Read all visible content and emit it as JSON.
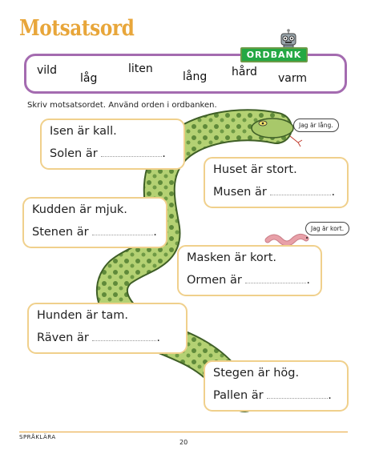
{
  "title": "Motsatsord",
  "wordbank": {
    "label": "ORDBANK",
    "words": [
      "vild",
      "låg",
      "liten",
      "lång",
      "hård",
      "varm"
    ]
  },
  "instruction": "Skriv motsatsordet. Använd orden i ordbanken.",
  "exercises": [
    {
      "statement": "Isen är kall.",
      "prompt": "Solen är",
      "end": "."
    },
    {
      "statement": "Huset är stort.",
      "prompt": "Musen är",
      "end": "."
    },
    {
      "statement": "Kudden är mjuk.",
      "prompt": "Stenen är",
      "end": "."
    },
    {
      "statement": "Masken är kort.",
      "prompt": "Ormen är",
      "end": "."
    },
    {
      "statement": "Hunden är tam.",
      "prompt": "Räven är",
      "end": "."
    },
    {
      "statement": "Stegen är hög.",
      "prompt": "Pallen är",
      "end": "."
    }
  ],
  "bubbles": {
    "snake": "Jag är lång.",
    "worm": "Jag är kort."
  },
  "footer": {
    "section": "SPRÅKLÄRA",
    "page": "20"
  },
  "colors": {
    "title": "#e8a63a",
    "wordbank_border": "#a46bb0",
    "ordbank_label": "#24a843",
    "box_border": "#f0d08c",
    "snake_body": "#a9c96a",
    "worm": "#e8a0a8"
  }
}
